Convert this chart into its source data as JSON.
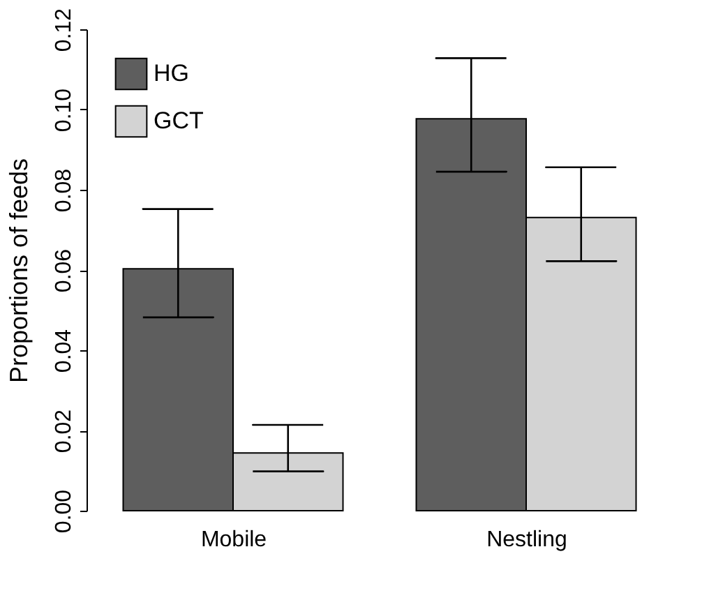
{
  "chart_data": {
    "type": "bar",
    "ylabel": "Proportions of feeds",
    "categories": [
      "Mobile",
      "Nestling"
    ],
    "series": [
      {
        "name": "HG",
        "color": "#5e5e5e",
        "values": [
          0.0603,
          0.0977
        ],
        "errors": [
          [
            0.0482,
            0.0752
          ],
          [
            0.0845,
            0.1128
          ]
        ]
      },
      {
        "name": "GCT",
        "color": "#d3d3d3",
        "values": [
          0.0144,
          0.0731
        ],
        "errors": [
          [
            0.0098,
            0.0214
          ],
          [
            0.0622,
            0.0856
          ]
        ]
      }
    ],
    "ylim": [
      0,
      0.12
    ],
    "yticks": [
      {
        "value": 0,
        "label": "0.00"
      },
      {
        "value": 0.02,
        "label": "0.02"
      },
      {
        "value": 0.04,
        "label": "0.04"
      },
      {
        "value": 0.06,
        "label": "0.06"
      },
      {
        "value": 0.08,
        "label": "0.08"
      },
      {
        "value": 0.1,
        "label": "0.10"
      },
      {
        "value": 0.12,
        "label": "0.12"
      }
    ],
    "legend": "top left",
    "grid": false
  }
}
